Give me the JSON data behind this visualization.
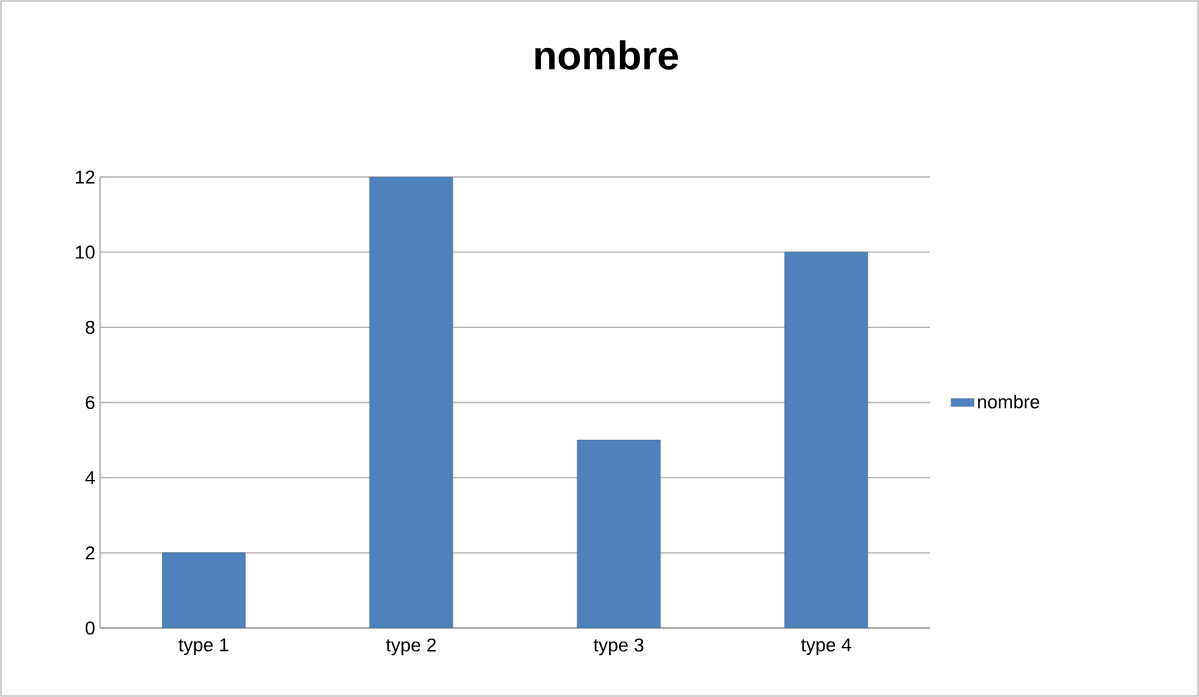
{
  "chart_data": {
    "type": "bar",
    "title": "nombre",
    "categories": [
      "type 1",
      "type 2",
      "type 3",
      "type 4"
    ],
    "series": [
      {
        "name": "nombre",
        "color": "#4f81bd",
        "values": [
          2,
          12,
          5,
          10
        ]
      }
    ],
    "ylim": [
      0,
      12
    ],
    "yticks": [
      0,
      2,
      4,
      6,
      8,
      10,
      12
    ],
    "grid": "y",
    "legend": "right"
  }
}
